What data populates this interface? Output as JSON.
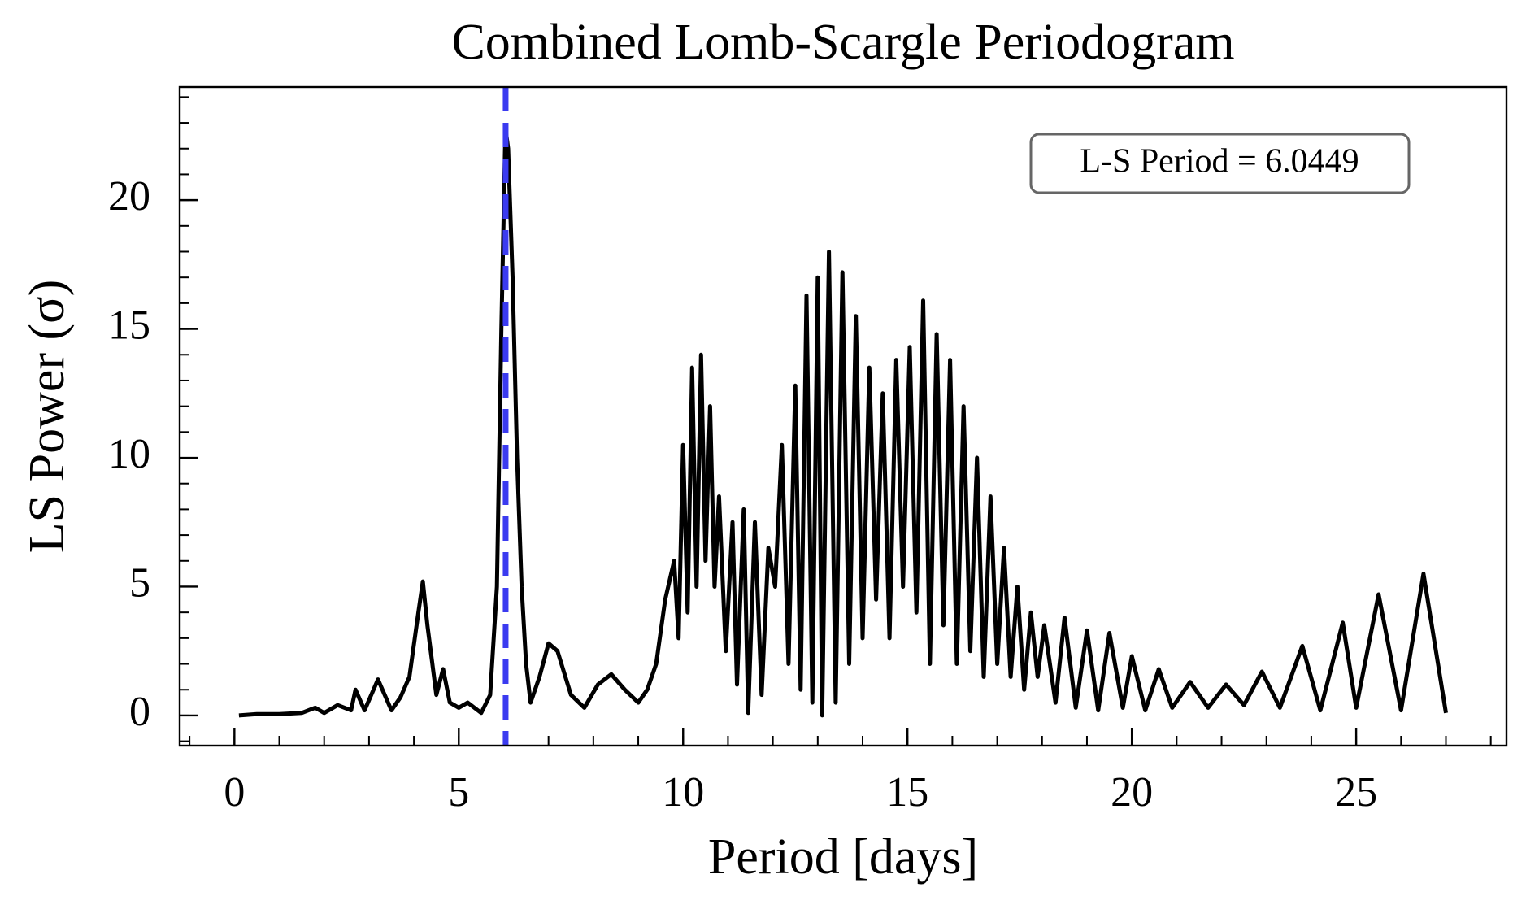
{
  "chart_data": {
    "type": "line",
    "title": "Combined Lomb-Scargle Periodogram",
    "xlabel": "Period [days]",
    "ylabel": "LS Power (σ)",
    "annotation": "L-S Period = 6.0449",
    "period": 6.0449,
    "period_color": "#3b3bf0",
    "xlim": [
      -1.22,
      28.35
    ],
    "ylim": [
      -1.17,
      24.39
    ],
    "xticks": [
      0,
      5,
      10,
      15,
      20,
      25
    ],
    "yticks": [
      0,
      5,
      10,
      15,
      20
    ],
    "minor_ticks": true,
    "series": [
      {
        "color": "#000000",
        "x": [
          0.1,
          0.5,
          1.0,
          1.5,
          1.8,
          2.0,
          2.3,
          2.6,
          2.7,
          2.9,
          3.2,
          3.5,
          3.7,
          3.9,
          4.1,
          4.2,
          4.3,
          4.5,
          4.65,
          4.8,
          5.0,
          5.2,
          5.5,
          5.7,
          5.85,
          5.95,
          6.04,
          6.1,
          6.2,
          6.3,
          6.4,
          6.5,
          6.6,
          6.8,
          7.0,
          7.2,
          7.5,
          7.8,
          8.1,
          8.4,
          8.7,
          9.0,
          9.2,
          9.4,
          9.6,
          9.8,
          9.9,
          10.0,
          10.1,
          10.2,
          10.3,
          10.4,
          10.5,
          10.6,
          10.7,
          10.8,
          10.95,
          11.1,
          11.2,
          11.35,
          11.45,
          11.6,
          11.75,
          11.9,
          12.05,
          12.2,
          12.35,
          12.5,
          12.62,
          12.75,
          12.88,
          13.0,
          13.1,
          13.25,
          13.4,
          13.55,
          13.7,
          13.85,
          14.0,
          14.15,
          14.3,
          14.45,
          14.6,
          14.75,
          14.9,
          15.05,
          15.2,
          15.35,
          15.5,
          15.65,
          15.8,
          15.95,
          16.1,
          16.25,
          16.4,
          16.55,
          16.7,
          16.85,
          17.0,
          17.15,
          17.3,
          17.45,
          17.6,
          17.75,
          17.9,
          18.05,
          18.3,
          18.5,
          18.75,
          19.0,
          19.25,
          19.5,
          19.8,
          20.0,
          20.3,
          20.6,
          20.9,
          21.3,
          21.7,
          22.1,
          22.5,
          22.9,
          23.3,
          23.8,
          24.2,
          24.7,
          25.0,
          25.5,
          26.0,
          26.5,
          27.0
        ],
        "values": [
          0,
          0.05,
          0.05,
          0.1,
          0.3,
          0.1,
          0.4,
          0.2,
          1.0,
          0.2,
          1.4,
          0.2,
          0.7,
          1.5,
          4.0,
          5.2,
          3.5,
          0.8,
          1.8,
          0.5,
          0.3,
          0.5,
          0.1,
          0.8,
          5,
          15,
          22.8,
          22,
          17,
          10,
          5,
          2,
          0.5,
          1.5,
          2.8,
          2.5,
          0.8,
          0.3,
          1.2,
          1.6,
          1.0,
          0.5,
          1.0,
          2.0,
          4.5,
          6,
          3,
          10.5,
          4,
          13.5,
          5,
          14,
          6,
          12,
          5,
          8.5,
          2.5,
          7.5,
          1.2,
          8,
          0.1,
          7.5,
          0.8,
          6.5,
          5,
          10.5,
          2,
          12.8,
          1,
          16.3,
          0.5,
          17,
          0,
          18,
          0.5,
          17.2,
          2,
          15.5,
          3,
          13.5,
          4.5,
          12.5,
          3,
          13.8,
          5,
          14.3,
          4,
          16.1,
          2,
          14.8,
          3.5,
          13.8,
          2,
          12,
          2.5,
          10,
          1.5,
          8.5,
          2,
          6.5,
          1.5,
          5,
          1,
          4,
          1.5,
          3.5,
          0.5,
          3.8,
          0.3,
          3.3,
          0.2,
          3.2,
          0.3,
          2.3,
          0.2,
          1.8,
          0.3,
          1.3,
          0.3,
          1.2,
          0.4,
          1.7,
          0.3,
          2.7,
          0.2,
          3.6,
          0.3,
          4.7,
          0.2,
          5.5,
          0.1
        ]
      }
    ]
  }
}
